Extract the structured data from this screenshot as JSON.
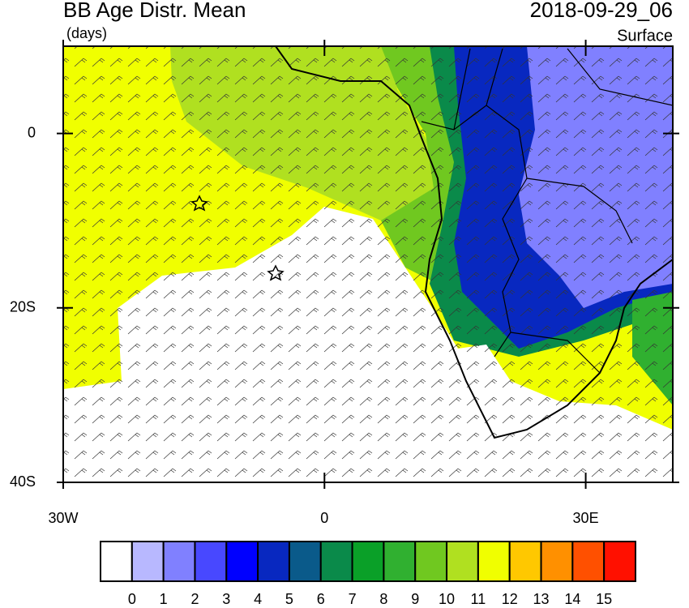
{
  "chart_data": {
    "type": "map",
    "title": "BB Age Distr. Mean",
    "units": "(days)",
    "date": "2018-09-29_06",
    "level": "Surface",
    "xlim": [
      -30,
      40
    ],
    "ylim": [
      -40,
      10
    ],
    "xticks": [
      {
        "value": -30,
        "label": "30W"
      },
      0,
      {
        "value": 30,
        "label": "30E"
      }
    ],
    "yticks": [
      0,
      {
        "value": -20,
        "label": "20S"
      },
      {
        "value": -40,
        "label": "40S"
      }
    ],
    "colorbar": {
      "labels": [
        "0",
        "1",
        "2",
        "3",
        "4",
        "5",
        "6",
        "7",
        "8",
        "9",
        "10",
        "11",
        "12",
        "13",
        "14",
        "15"
      ],
      "colors": [
        "#ffffff",
        "#b8b8ff",
        "#8080ff",
        "#4848ff",
        "#0000ff",
        "#0828c0",
        "#0a5a8a",
        "#0a8a4a",
        "#0aa028",
        "#30b030",
        "#70c820",
        "#b0e020",
        "#f0ff00",
        "#ffc800",
        "#ff9000",
        "#ff5000",
        "#ff1000"
      ]
    }
  }
}
